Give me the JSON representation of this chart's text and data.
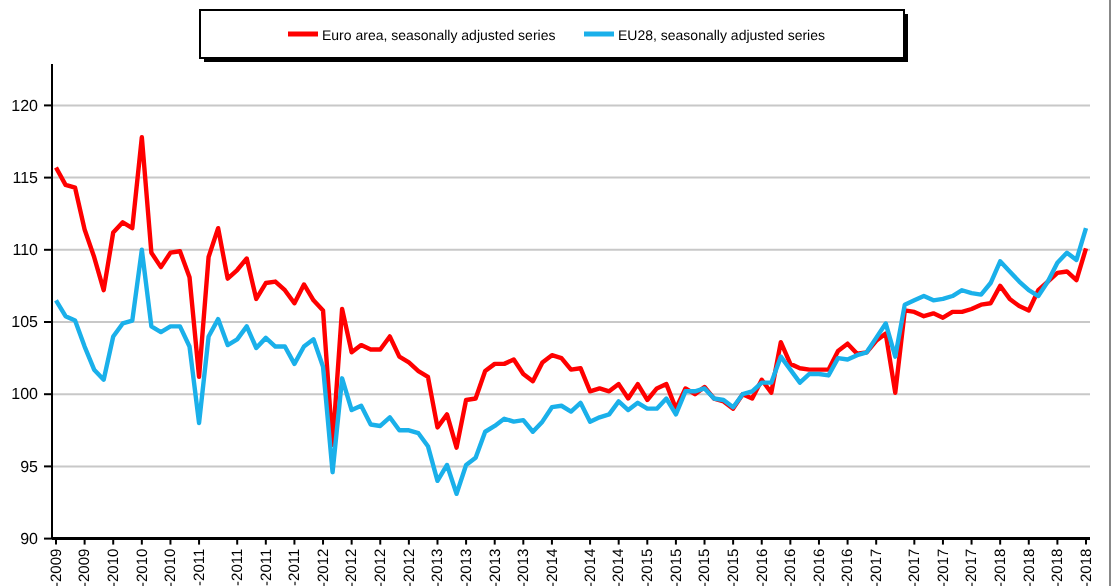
{
  "chart_data": {
    "type": "line",
    "categories": [
      "-2009",
      null,
      null,
      "-2009",
      null,
      null,
      "-2010",
      null,
      null,
      "-2010",
      null,
      null,
      "-2010",
      null,
      null,
      "-2011",
      null,
      null,
      null,
      "-2011",
      null,
      null,
      "-2011",
      null,
      null,
      "-2011",
      null,
      null,
      "-2012",
      null,
      null,
      "-2012",
      null,
      null,
      "-2012",
      null,
      null,
      "-2012",
      null,
      null,
      "-2013",
      null,
      null,
      "-2013",
      null,
      null,
      "-2013",
      null,
      null,
      "-2013",
      null,
      null,
      "-2014",
      null,
      null,
      null,
      "-2014",
      null,
      null,
      "-2014",
      null,
      null,
      "-2015",
      null,
      null,
      "-2015",
      null,
      null,
      "-2015",
      null,
      null,
      "-2015",
      null,
      null,
      "-2016",
      null,
      null,
      "-2016",
      null,
      null,
      "-2016",
      null,
      null,
      "-2016",
      null,
      null,
      "-2017",
      null,
      null,
      null,
      "-2017",
      null,
      null,
      "-2017",
      null,
      null,
      "-2017",
      null,
      null,
      "-2018",
      null,
      null,
      "-2018",
      null,
      null,
      "-2018",
      null,
      null,
      "-2018"
    ],
    "series": [
      {
        "name": "Euro area, seasonally adjusted series",
        "color": "#ff0000",
        "values": [
          115.7,
          114.5,
          114.3,
          111.4,
          109.5,
          107.2,
          111.2,
          111.9,
          111.5,
          117.8,
          109.8,
          108.8,
          109.8,
          109.9,
          108.1,
          101.2,
          109.5,
          111.5,
          108.0,
          108.6,
          109.4,
          106.6,
          107.7,
          107.8,
          107.2,
          106.3,
          107.6,
          106.5,
          105.8,
          96.5,
          105.9,
          102.9,
          103.4,
          103.1,
          103.1,
          104.0,
          102.6,
          102.2,
          101.6,
          101.2,
          97.7,
          98.6,
          96.3,
          99.6,
          99.7,
          101.6,
          102.1,
          102.1,
          102.4,
          101.4,
          100.9,
          102.2,
          102.7,
          102.5,
          101.7,
          101.8,
          100.2,
          100.4,
          100.2,
          100.7,
          99.7,
          100.7,
          99.6,
          100.4,
          100.7,
          99.0,
          100.4,
          100.0,
          100.5,
          99.7,
          99.5,
          99.0,
          100.0,
          99.7,
          101.0,
          100.1,
          103.6,
          102.1,
          101.8,
          101.7,
          101.7,
          101.7,
          103.0,
          103.5,
          102.8,
          102.9,
          103.7,
          104.2,
          100.1,
          105.8,
          105.7,
          105.4,
          105.6,
          105.3,
          105.7,
          105.7,
          105.9,
          106.2,
          106.3,
          107.5,
          106.6,
          106.1,
          105.8,
          107.2,
          107.8,
          108.4,
          108.5,
          107.9,
          110.1
        ]
      },
      {
        "name": "EU28, seasonally adjusted series",
        "color": "#1ab0ea",
        "values": [
          106.5,
          105.4,
          105.1,
          103.3,
          101.7,
          101.0,
          104.0,
          104.9,
          105.1,
          110.0,
          104.7,
          104.3,
          104.7,
          104.7,
          103.3,
          98.0,
          104.0,
          105.2,
          103.4,
          103.8,
          104.7,
          103.2,
          103.9,
          103.3,
          103.3,
          102.1,
          103.3,
          103.8,
          101.9,
          94.6,
          101.1,
          98.9,
          99.2,
          97.9,
          97.8,
          98.4,
          97.5,
          97.5,
          97.3,
          96.4,
          94.0,
          95.1,
          93.1,
          95.1,
          95.6,
          97.4,
          97.8,
          98.3,
          98.1,
          98.2,
          97.4,
          98.1,
          99.1,
          99.2,
          98.8,
          99.4,
          98.1,
          98.4,
          98.6,
          99.5,
          98.9,
          99.4,
          99.0,
          99.0,
          99.7,
          98.6,
          100.2,
          100.2,
          100.4,
          99.7,
          99.6,
          99.1,
          100.0,
          100.2,
          100.8,
          100.8,
          102.6,
          101.7,
          100.8,
          101.4,
          101.4,
          101.3,
          102.5,
          102.4,
          102.7,
          102.9,
          103.9,
          104.9,
          102.6,
          106.2,
          106.5,
          106.8,
          106.5,
          106.6,
          106.8,
          107.2,
          107.0,
          106.9,
          107.7,
          109.2,
          108.5,
          107.8,
          107.2,
          106.8,
          107.8,
          109.1,
          109.8,
          109.3,
          111.5
        ]
      }
    ],
    "ylim": [
      90,
      120
    ],
    "yticks": [
      90,
      95,
      100,
      105,
      110,
      115,
      120
    ],
    "grid": "y",
    "legend": "top",
    "marker": "none",
    "line_style": "solid"
  }
}
